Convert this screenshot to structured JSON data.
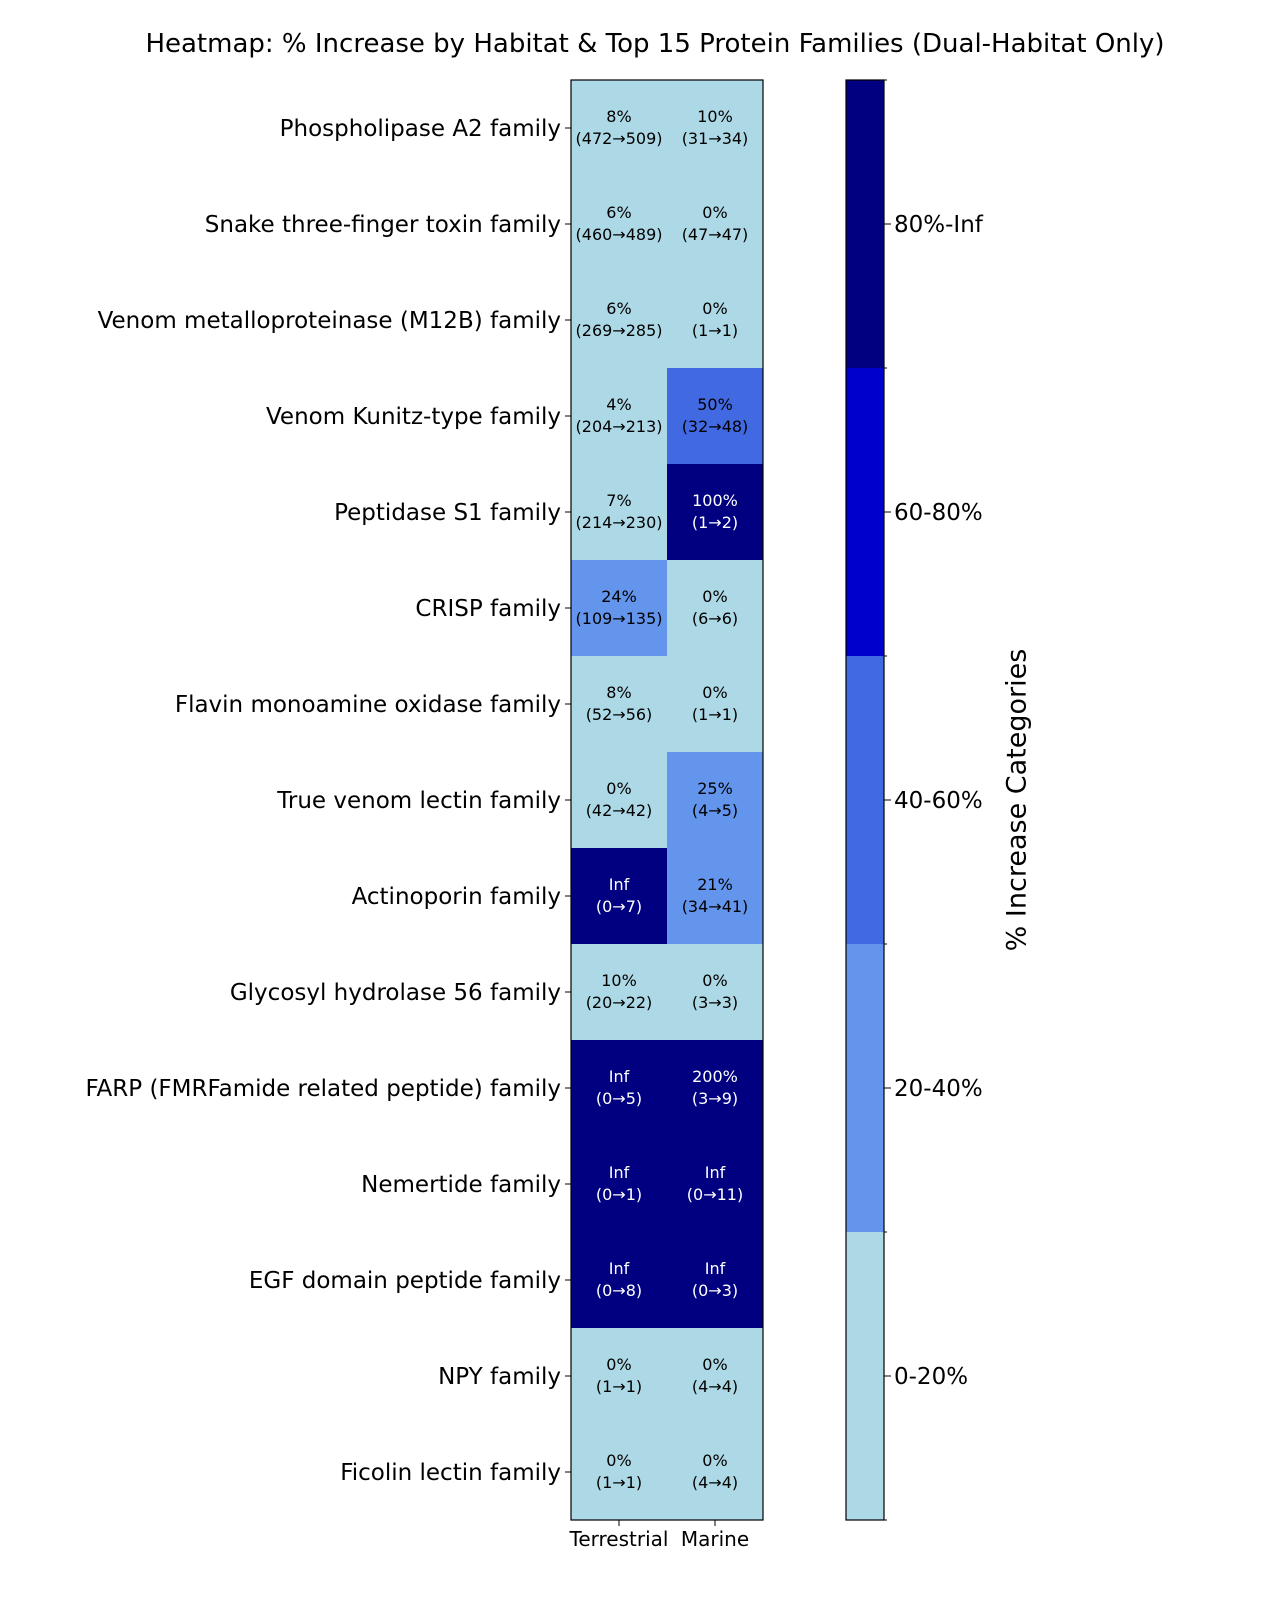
{
  "chart_data": {
    "type": "heatmap",
    "title": "Heatmap: % Increase by Habitat & Top 15 Protein Families (Dual-Habitat Only)",
    "columns": [
      "Terrestrial",
      "Marine"
    ],
    "rows": [
      "Phospholipase A2 family",
      "Snake three-finger toxin family",
      "Venom metalloproteinase (M12B) family",
      "Venom Kunitz-type family",
      "Peptidase S1 family",
      "CRISP family",
      "Flavin monoamine oxidase family",
      "True venom lectin family",
      "Actinoporin family",
      "Glycosyl hydrolase 56 family",
      "FARP (FMRFamide related peptide) family",
      "Nemertide family",
      "EGF domain peptide family",
      "NPY family",
      "Ficolin lectin family"
    ],
    "cells": [
      [
        {
          "pct": "8%",
          "counts": "(472→509)",
          "category": 0
        },
        {
          "pct": "10%",
          "counts": "(31→34)",
          "category": 0
        }
      ],
      [
        {
          "pct": "6%",
          "counts": "(460→489)",
          "category": 0
        },
        {
          "pct": "0%",
          "counts": "(47→47)",
          "category": 0
        }
      ],
      [
        {
          "pct": "6%",
          "counts": "(269→285)",
          "category": 0
        },
        {
          "pct": "0%",
          "counts": "(1→1)",
          "category": 0
        }
      ],
      [
        {
          "pct": "4%",
          "counts": "(204→213)",
          "category": 0
        },
        {
          "pct": "50%",
          "counts": "(32→48)",
          "category": 2
        }
      ],
      [
        {
          "pct": "7%",
          "counts": "(214→230)",
          "category": 0
        },
        {
          "pct": "100%",
          "counts": "(1→2)",
          "category": 4
        }
      ],
      [
        {
          "pct": "24%",
          "counts": "(109→135)",
          "category": 1
        },
        {
          "pct": "0%",
          "counts": "(6→6)",
          "category": 0
        }
      ],
      [
        {
          "pct": "8%",
          "counts": "(52→56)",
          "category": 0
        },
        {
          "pct": "0%",
          "counts": "(1→1)",
          "category": 0
        }
      ],
      [
        {
          "pct": "0%",
          "counts": "(42→42)",
          "category": 0
        },
        {
          "pct": "25%",
          "counts": "(4→5)",
          "category": 1
        }
      ],
      [
        {
          "pct": "Inf",
          "counts": "(0→7)",
          "category": 4
        },
        {
          "pct": "21%",
          "counts": "(34→41)",
          "category": 1
        }
      ],
      [
        {
          "pct": "10%",
          "counts": "(20→22)",
          "category": 0
        },
        {
          "pct": "0%",
          "counts": "(3→3)",
          "category": 0
        }
      ],
      [
        {
          "pct": "Inf",
          "counts": "(0→5)",
          "category": 4
        },
        {
          "pct": "200%",
          "counts": "(3→9)",
          "category": 4
        }
      ],
      [
        {
          "pct": "Inf",
          "counts": "(0→1)",
          "category": 4
        },
        {
          "pct": "Inf",
          "counts": "(0→11)",
          "category": 4
        }
      ],
      [
        {
          "pct": "Inf",
          "counts": "(0→8)",
          "category": 4
        },
        {
          "pct": "Inf",
          "counts": "(0→3)",
          "category": 4
        }
      ],
      [
        {
          "pct": "0%",
          "counts": "(1→1)",
          "category": 0
        },
        {
          "pct": "0%",
          "counts": "(4→4)",
          "category": 0
        }
      ],
      [
        {
          "pct": "0%",
          "counts": "(1→1)",
          "category": 0
        },
        {
          "pct": "0%",
          "counts": "(4→4)",
          "category": 0
        }
      ]
    ],
    "colorbar": {
      "label": "% Increase Categories",
      "categories": [
        "0-20%",
        "20-40%",
        "40-60%",
        "60-80%",
        "80%-Inf"
      ],
      "colors": [
        "#add8e6",
        "#6495ed",
        "#4169e1",
        "#0000cd",
        "#000080"
      ]
    },
    "text_colors": {
      "light_bg": "#000000",
      "dark_bg": "#ffffff"
    }
  }
}
